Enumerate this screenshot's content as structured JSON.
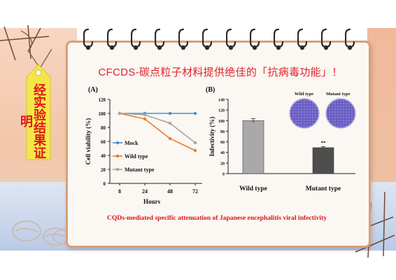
{
  "slide": {
    "title": "CFCDS-碳点粒子材料提供绝佳的「抗病毒功能」！",
    "tag_text": "经实验结果证明",
    "caption": "CQDs-mediated specific attenuation of Japanese encephalitis viral infectivity"
  },
  "panel_a": {
    "label": "(A)",
    "ylabel": "Cell viability (%)",
    "xlabel": "Hours",
    "y_ticks": [
      "0",
      "20",
      "40",
      "60",
      "80",
      "100",
      "120"
    ],
    "x_ticks": [
      "8",
      "24",
      "48",
      "72"
    ]
  },
  "panel_b": {
    "label": "(B)",
    "ylabel": "Infectivity (%)",
    "y_ticks": [
      "0",
      "20",
      "40",
      "60",
      "80",
      "100",
      "120",
      "140"
    ],
    "dish_labels": [
      "Wild type",
      "Mutant type"
    ],
    "significance": "**"
  },
  "chart_data": [
    {
      "type": "line",
      "x": [
        8,
        24,
        48,
        72
      ],
      "xlabel": "Hours",
      "ylabel": "Cell viability (%)",
      "ylim": [
        0,
        120
      ],
      "series": [
        {
          "name": "Mock",
          "values": [
            100,
            100,
            100,
            100
          ],
          "color": "#4a90d0"
        },
        {
          "name": "Wild type",
          "values": [
            100,
            92,
            64,
            47
          ],
          "color": "#e67e30"
        },
        {
          "name": "Mutant type",
          "values": [
            100,
            98,
            86,
            58
          ],
          "color": "#a6a6a6"
        }
      ],
      "legend": "center-left"
    },
    {
      "type": "bar",
      "categories": [
        "Wild type",
        "Mutant type"
      ],
      "values": [
        100,
        49
      ],
      "errors": [
        4,
        2
      ],
      "colors": [
        "#a9a9a9",
        "#4d4d4d"
      ],
      "ylabel": "Infectivity (%)",
      "ylim": [
        0,
        140
      ]
    }
  ]
}
